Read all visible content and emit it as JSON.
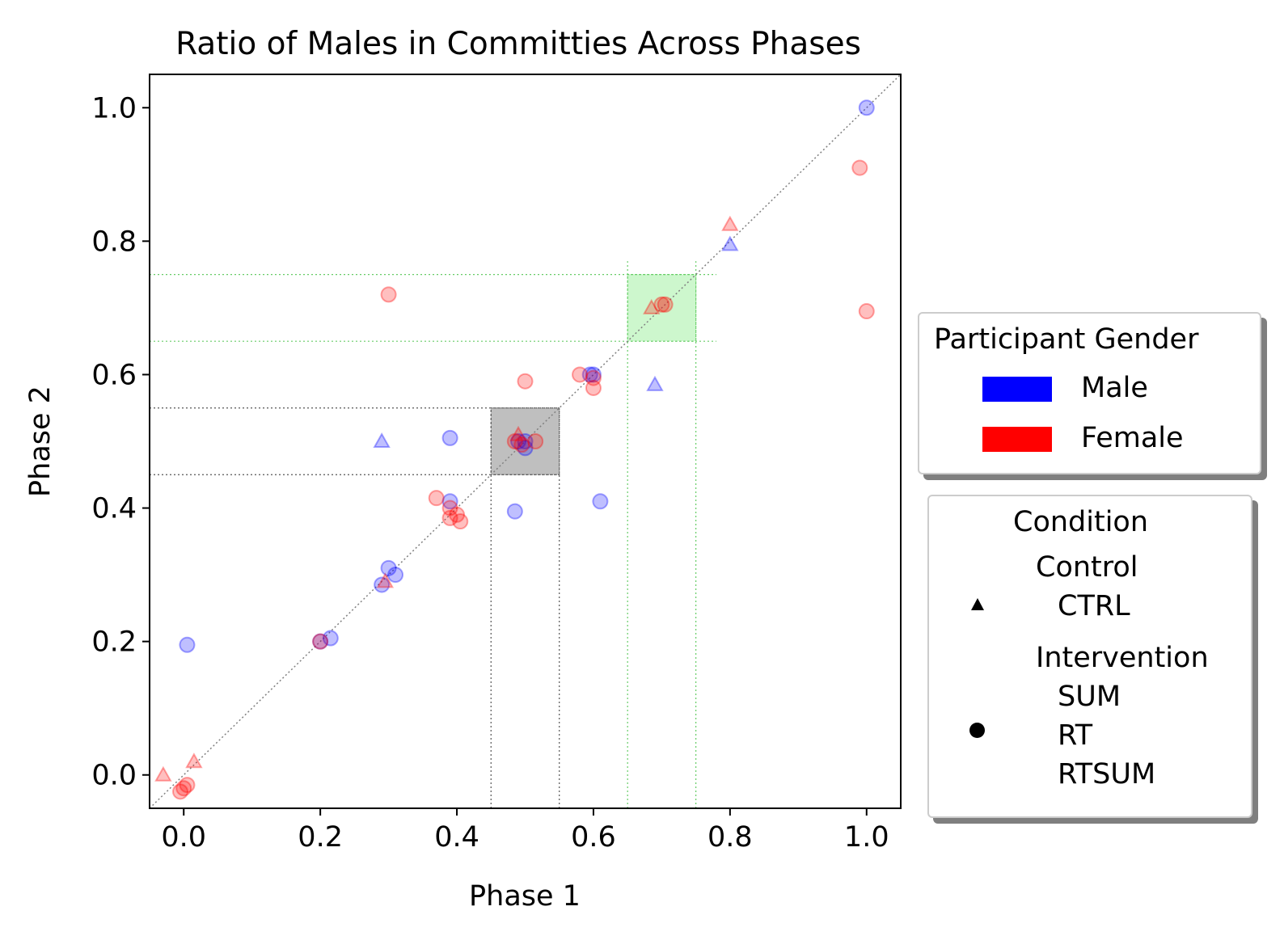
{
  "chart_data": {
    "type": "scatter",
    "title": "Ratio of Males in Committies Across Phases",
    "xlabel": "Phase 1",
    "ylabel": "Phase 2",
    "xlim": [
      -0.05,
      1.05
    ],
    "ylim": [
      -0.05,
      1.05
    ],
    "xticks": [
      "0.0",
      "0.2",
      "0.4",
      "0.6",
      "0.8",
      "1.0"
    ],
    "yticks": [
      "0.0",
      "0.2",
      "0.4",
      "0.6",
      "0.8",
      "1.0"
    ],
    "xtick_values": [
      0.0,
      0.2,
      0.4,
      0.6,
      0.8,
      1.0
    ],
    "ytick_values": [
      0.0,
      0.2,
      0.4,
      0.6,
      0.8,
      1.0
    ],
    "grid": false,
    "diagonal_reference": true,
    "highlight_regions": [
      {
        "x": [
          0.45,
          0.55
        ],
        "y": [
          0.45,
          0.55
        ],
        "color": "#808080"
      },
      {
        "x": [
          0.65,
          0.75
        ],
        "y": [
          0.65,
          0.75
        ],
        "color": "#90ee90"
      }
    ],
    "series": [
      {
        "name": "Male",
        "color": "#0000ff",
        "points": [
          {
            "x": 1.0,
            "y": 1.0,
            "marker": "circle"
          },
          {
            "x": 0.8,
            "y": 0.795,
            "marker": "triangle"
          },
          {
            "x": 0.69,
            "y": 0.585,
            "marker": "triangle"
          },
          {
            "x": 0.6,
            "y": 0.6,
            "marker": "circle"
          },
          {
            "x": 0.595,
            "y": 0.6,
            "marker": "circle"
          },
          {
            "x": 0.29,
            "y": 0.5,
            "marker": "triangle"
          },
          {
            "x": 0.39,
            "y": 0.505,
            "marker": "circle"
          },
          {
            "x": 0.5,
            "y": 0.5,
            "marker": "circle"
          },
          {
            "x": 0.5,
            "y": 0.49,
            "marker": "circle"
          },
          {
            "x": 0.49,
            "y": 0.5,
            "marker": "circle"
          },
          {
            "x": 0.485,
            "y": 0.395,
            "marker": "circle"
          },
          {
            "x": 0.61,
            "y": 0.41,
            "marker": "circle"
          },
          {
            "x": 0.39,
            "y": 0.41,
            "marker": "circle"
          },
          {
            "x": 0.3,
            "y": 0.31,
            "marker": "circle"
          },
          {
            "x": 0.31,
            "y": 0.3,
            "marker": "circle"
          },
          {
            "x": 0.29,
            "y": 0.285,
            "marker": "circle"
          },
          {
            "x": 0.2,
            "y": 0.2,
            "marker": "circle"
          },
          {
            "x": 0.215,
            "y": 0.205,
            "marker": "circle"
          },
          {
            "x": 0.005,
            "y": 0.195,
            "marker": "circle"
          }
        ]
      },
      {
        "name": "Female",
        "color": "#ff0000",
        "points": [
          {
            "x": 0.99,
            "y": 0.91,
            "marker": "circle"
          },
          {
            "x": 0.8,
            "y": 0.825,
            "marker": "triangle"
          },
          {
            "x": 1.0,
            "y": 0.695,
            "marker": "circle"
          },
          {
            "x": 0.3,
            "y": 0.72,
            "marker": "circle"
          },
          {
            "x": 0.7,
            "y": 0.705,
            "marker": "circle"
          },
          {
            "x": 0.685,
            "y": 0.7,
            "marker": "triangle"
          },
          {
            "x": 0.705,
            "y": 0.705,
            "marker": "circle"
          },
          {
            "x": 0.5,
            "y": 0.59,
            "marker": "circle"
          },
          {
            "x": 0.58,
            "y": 0.6,
            "marker": "circle"
          },
          {
            "x": 0.6,
            "y": 0.595,
            "marker": "circle"
          },
          {
            "x": 0.6,
            "y": 0.58,
            "marker": "circle"
          },
          {
            "x": 0.49,
            "y": 0.51,
            "marker": "triangle"
          },
          {
            "x": 0.485,
            "y": 0.5,
            "marker": "circle"
          },
          {
            "x": 0.495,
            "y": 0.495,
            "marker": "circle"
          },
          {
            "x": 0.515,
            "y": 0.5,
            "marker": "circle"
          },
          {
            "x": 0.37,
            "y": 0.415,
            "marker": "circle"
          },
          {
            "x": 0.39,
            "y": 0.4,
            "marker": "circle"
          },
          {
            "x": 0.4,
            "y": 0.39,
            "marker": "circle"
          },
          {
            "x": 0.39,
            "y": 0.385,
            "marker": "circle"
          },
          {
            "x": 0.405,
            "y": 0.38,
            "marker": "circle"
          },
          {
            "x": 0.295,
            "y": 0.29,
            "marker": "triangle"
          },
          {
            "x": 0.2,
            "y": 0.2,
            "marker": "circle"
          },
          {
            "x": 0.015,
            "y": 0.02,
            "marker": "triangle"
          },
          {
            "x": -0.03,
            "y": 0.0,
            "marker": "triangle"
          },
          {
            "x": 0.005,
            "y": -0.015,
            "marker": "circle"
          },
          {
            "x": 0.0,
            "y": -0.02,
            "marker": "circle"
          },
          {
            "x": -0.005,
            "y": -0.025,
            "marker": "circle"
          }
        ]
      }
    ]
  },
  "legends": {
    "gender": {
      "title": "Participant Gender",
      "items": [
        {
          "label": "Male",
          "color": "#0000ff"
        },
        {
          "label": "Female",
          "color": "#ff0000"
        }
      ]
    },
    "condition": {
      "title": "Condition",
      "items": [
        {
          "label": "Control",
          "sub": [
            "CTRL"
          ],
          "marker": "triangle"
        },
        {
          "label": "Intervention",
          "sub": [
            "SUM",
            "RT",
            "RTSUM"
          ],
          "marker": "circle"
        }
      ]
    }
  }
}
